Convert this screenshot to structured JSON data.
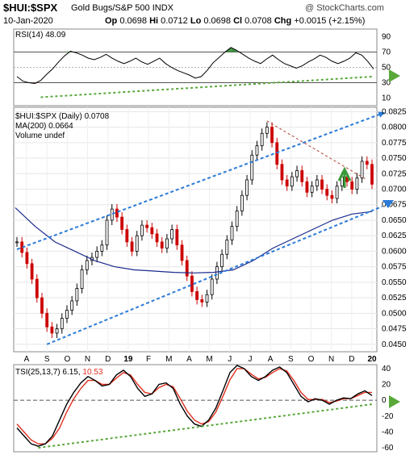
{
  "header": {
    "symbol": "$HUI:$SPX",
    "description": "Gold Bugs/S&P 500 INDX",
    "source": "@ StockCharts.com",
    "date": "10-Jan-2020",
    "ohlc": {
      "op_label": "Op",
      "op": "0.0698",
      "hi_label": "Hi",
      "hi": "0.0712",
      "lo_label": "Lo",
      "lo": "0.0698",
      "cl_label": "Cl",
      "cl": "0.0708",
      "chg_label": "Chg",
      "chg": "+0.0015 (+2.15%)"
    }
  },
  "colors": {
    "price_up": "#000000",
    "price_down": "#cc0000",
    "ma": "#1a2a8c",
    "channel": "#2b7bd8",
    "support": "#59a83a",
    "downtrend": "#b03a2e",
    "tsi": "#000000",
    "tsi_signal": "#e0301e",
    "rsi_overbought_fill": "#3f8f3f",
    "rsi_oversold_fill": "#8a4a3a"
  },
  "chart_data": [
    {
      "type": "line",
      "panel": "rsi",
      "legend": [
        "RSI(14)",
        "48.09"
      ],
      "ylim": [
        0,
        100
      ],
      "ticks": [
        "90",
        "70",
        "50",
        "30",
        "10"
      ],
      "guide_levels": [
        70,
        30
      ],
      "values": [
        38,
        32,
        30,
        29,
        33,
        41,
        48,
        57,
        65,
        71,
        69,
        66,
        62,
        60,
        63,
        67,
        62,
        58,
        55,
        58,
        62,
        57,
        54,
        58,
        62,
        55,
        50,
        46,
        43,
        40,
        36,
        38,
        46,
        56,
        63,
        70,
        76,
        72,
        67,
        62,
        58,
        55,
        61,
        66,
        60,
        55,
        52,
        49,
        52,
        57,
        61,
        66,
        63,
        58,
        55,
        58,
        62,
        69,
        66,
        58,
        48
      ],
      "support_line": {
        "from_index": 4,
        "from_value": 11,
        "to_index": 60,
        "to_value": 38
      }
    },
    {
      "type": "candlestick",
      "panel": "price",
      "legend": [
        "$HUI:$SPX (Daily) 0.0708",
        "MA(200) 0.0664",
        "Volume undef"
      ],
      "ylim": [
        0.0438,
        0.0832
      ],
      "y_ticks": [
        "0.0825",
        "0.0800",
        "0.0775",
        "0.0750",
        "0.0725",
        "0.0700",
        "0.0675",
        "0.0650",
        "0.0625",
        "0.0600",
        "0.0575",
        "0.0550",
        "0.0525",
        "0.0500",
        "0.0475",
        "0.0450"
      ],
      "x_ticks": [
        "A",
        "S",
        "O",
        "N",
        "D",
        "19",
        "F",
        "M",
        "A",
        "M",
        "J",
        "J",
        "A",
        "S",
        "O",
        "N",
        "D",
        "20"
      ],
      "close": [
        0.0615,
        0.0598,
        0.058,
        0.0555,
        0.0525,
        0.05,
        0.0478,
        0.0468,
        0.0475,
        0.0492,
        0.0505,
        0.052,
        0.054,
        0.057,
        0.0585,
        0.059,
        0.06,
        0.061,
        0.065,
        0.0668,
        0.0655,
        0.0635,
        0.0615,
        0.06,
        0.0625,
        0.0642,
        0.0638,
        0.0628,
        0.0615,
        0.0605,
        0.062,
        0.0635,
        0.061,
        0.0585,
        0.056,
        0.0535,
        0.0522,
        0.0518,
        0.053,
        0.0555,
        0.0575,
        0.0595,
        0.0618,
        0.064,
        0.0665,
        0.069,
        0.0715,
        0.0755,
        0.077,
        0.079,
        0.08,
        0.0775,
        0.074,
        0.0715,
        0.0705,
        0.072,
        0.073,
        0.0712,
        0.0695,
        0.0705,
        0.0715,
        0.07,
        0.069,
        0.0685,
        0.0705,
        0.072,
        0.0712,
        0.07,
        0.0718,
        0.0745,
        0.074,
        0.0708
      ],
      "ma200": [
        0.067,
        0.064,
        0.0615,
        0.06,
        0.0585,
        0.0575,
        0.057,
        0.0568,
        0.0566,
        0.0565,
        0.0566,
        0.057,
        0.0585,
        0.0605,
        0.062,
        0.0635,
        0.065,
        0.066,
        0.0664
      ],
      "channel_upper": {
        "from_index": 0,
        "from_value": 0.0603,
        "to_index": 73,
        "to_value": 0.0822
      },
      "channel_lower": {
        "from_index": 6,
        "from_value": 0.045,
        "to_index": 73,
        "to_value": 0.0672
      },
      "downtrend": {
        "from_index": 50,
        "from_value": 0.081,
        "to_index": 70,
        "to_value": 0.0715
      }
    },
    {
      "type": "line",
      "panel": "tsi",
      "legend": [
        "TSI(25,13,7)",
        "6.15,",
        "10.53"
      ],
      "ylim": [
        -65,
        45
      ],
      "ticks": [
        "40",
        "20",
        "0",
        "-20",
        "-40",
        "-60"
      ],
      "tsi": [
        -35,
        -45,
        -55,
        -58,
        -55,
        -45,
        -25,
        -5,
        10,
        22,
        30,
        25,
        18,
        20,
        32,
        38,
        30,
        15,
        5,
        8,
        20,
        22,
        15,
        -5,
        -20,
        -30,
        -33,
        -25,
        -10,
        12,
        35,
        44,
        40,
        30,
        25,
        30,
        38,
        42,
        35,
        20,
        5,
        -2,
        2,
        0,
        -5,
        0,
        3,
        2,
        8,
        12,
        6
      ],
      "signal": [
        -30,
        -40,
        -50,
        -55,
        -55,
        -48,
        -35,
        -15,
        2,
        15,
        25,
        25,
        20,
        20,
        28,
        35,
        32,
        20,
        10,
        8,
        16,
        20,
        17,
        2,
        -14,
        -25,
        -30,
        -27,
        -15,
        5,
        26,
        40,
        40,
        33,
        27,
        29,
        35,
        40,
        37,
        25,
        10,
        1,
        1,
        1,
        -3,
        -1,
        2,
        2,
        6,
        10,
        10
      ],
      "support_line": {
        "from_index": 3,
        "from_value": -60,
        "to_index": 50,
        "to_value": -5
      }
    }
  ]
}
